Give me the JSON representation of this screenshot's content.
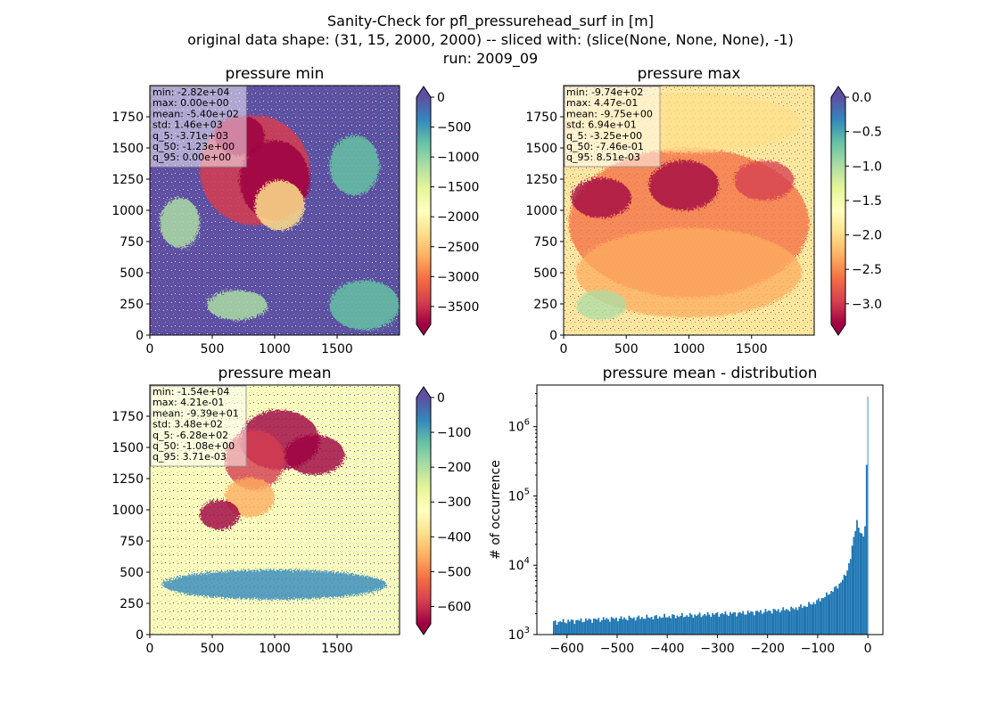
{
  "figure": {
    "title_lines": [
      "Sanity-Check for pfl_pressurehead_surf in [m]",
      "original data shape: (31, 15, 2000, 2000) -- sliced with: (slice(None, None, None), -1)",
      "run: 2009_09"
    ]
  },
  "colormap": [
    "#9e0142",
    "#d53e4f",
    "#f46d43",
    "#fdae61",
    "#fee08b",
    "#ffffbf",
    "#e6f598",
    "#abdda4",
    "#66c2a5",
    "#3288bd",
    "#5e4fa2"
  ],
  "chart_data": [
    {
      "type": "heatmap",
      "title": "pressure min",
      "x_ticks": [
        "0",
        "500",
        "1000",
        "1500"
      ],
      "y_ticks": [
        "0",
        "250",
        "500",
        "750",
        "1000",
        "1250",
        "1500",
        "1750"
      ],
      "xlim": [
        0,
        2000
      ],
      "ylim": [
        0,
        2000
      ],
      "colorbar": {
        "range": [
          -3800,
          0
        ],
        "ticks": [
          "0",
          "−500",
          "−1000",
          "−1500",
          "−2000",
          "−2500",
          "−3000",
          "−3500"
        ],
        "tick_values": [
          0,
          -500,
          -1000,
          -1500,
          -2000,
          -2500,
          -3000,
          -3500
        ],
        "extend": "both"
      },
      "stats": [
        "min: -2.82e+04",
        "max: 0.00e+00",
        "mean: -5.40e+02",
        "std: 1.46e+03",
        "q_5: -3.71e+03",
        "q_50: -1.23e+00",
        "q_95: 0.00e+00"
      ],
      "base_color": "#5e4fa2"
    },
    {
      "type": "heatmap",
      "title": "pressure max",
      "x_ticks": [
        "0",
        "500",
        "1000",
        "1500"
      ],
      "y_ticks": [
        "0",
        "250",
        "500",
        "750",
        "1000",
        "1250",
        "1500",
        "1750"
      ],
      "xlim": [
        0,
        2000
      ],
      "ylim": [
        0,
        2000
      ],
      "colorbar": {
        "range": [
          -3.3,
          0
        ],
        "ticks": [
          "0.0",
          "−0.5",
          "−1.0",
          "−1.5",
          "−2.0",
          "−2.5",
          "−3.0"
        ],
        "tick_values": [
          0,
          -0.5,
          -1.0,
          -1.5,
          -2.0,
          -2.5,
          -3.0
        ],
        "extend": "both"
      },
      "stats": [
        "min: -9.74e+02",
        "max: 4.47e-01",
        "mean: -9.75e+00",
        "std: 6.94e+01",
        "q_5: -3.25e+00",
        "q_50: -7.46e-01",
        "q_95: 8.51e-03"
      ],
      "base_color": "#fee8a0"
    },
    {
      "type": "heatmap",
      "title": "pressure mean",
      "x_ticks": [
        "0",
        "500",
        "1000",
        "1500"
      ],
      "y_ticks": [
        "0",
        "250",
        "500",
        "750",
        "1000",
        "1250",
        "1500",
        "1750"
      ],
      "xlim": [
        0,
        2000
      ],
      "ylim": [
        0,
        2000
      ],
      "colorbar": {
        "range": [
          -650,
          0
        ],
        "ticks": [
          "0",
          "−100",
          "−200",
          "−300",
          "−400",
          "−500",
          "−600"
        ],
        "tick_values": [
          0,
          -100,
          -200,
          -300,
          -400,
          -500,
          -600
        ],
        "extend": "both"
      },
      "stats": [
        "min: -1.54e+04",
        "max: 4.21e-01",
        "mean: -9.39e+01",
        "std: 3.48e+02",
        "q_5: -6.28e+02",
        "q_50: -1.08e+00",
        "q_95: 3.71e-03"
      ],
      "base_color": "#fdfdbe"
    },
    {
      "type": "bar",
      "title": "pressure mean - distribution",
      "ylabel": "# of occurrence",
      "xlim": [
        -660,
        30
      ],
      "y_log": true,
      "ylim_log10": [
        3,
        6.6
      ],
      "x_ticks": [
        "−600",
        "−500",
        "−400",
        "−300",
        "−200",
        "−100",
        "0"
      ],
      "x_tick_values": [
        -600,
        -500,
        -400,
        -300,
        -200,
        -100,
        0
      ],
      "y_ticks": [
        "10",
        "10",
        "10",
        "10"
      ],
      "y_tick_exponents": [
        "3",
        "4",
        "5",
        "6"
      ],
      "y_tick_log10": [
        3,
        4,
        5,
        6
      ],
      "bar_color": "#1f77b4",
      "bins": {
        "start": -628,
        "end": 0,
        "anchors": [
          [
            -628,
            1500
          ],
          [
            -600,
            1560
          ],
          [
            -550,
            1640
          ],
          [
            -500,
            1700
          ],
          [
            -450,
            1760
          ],
          [
            -400,
            1820
          ],
          [
            -350,
            1900
          ],
          [
            -300,
            1980
          ],
          [
            -250,
            2050
          ],
          [
            -200,
            2180
          ],
          [
            -150,
            2350
          ],
          [
            -120,
            2650
          ],
          [
            -100,
            3050
          ],
          [
            -80,
            3800
          ],
          [
            -60,
            5000
          ],
          [
            -45,
            7000
          ],
          [
            -35,
            12000
          ],
          [
            -28,
            25000
          ],
          [
            -22,
            45000
          ],
          [
            -16,
            30000
          ],
          [
            -10,
            25000
          ],
          [
            -5,
            40000
          ],
          [
            -3,
            100000
          ],
          [
            -1,
            2800000
          ],
          [
            0,
            2800000
          ]
        ]
      }
    }
  ]
}
